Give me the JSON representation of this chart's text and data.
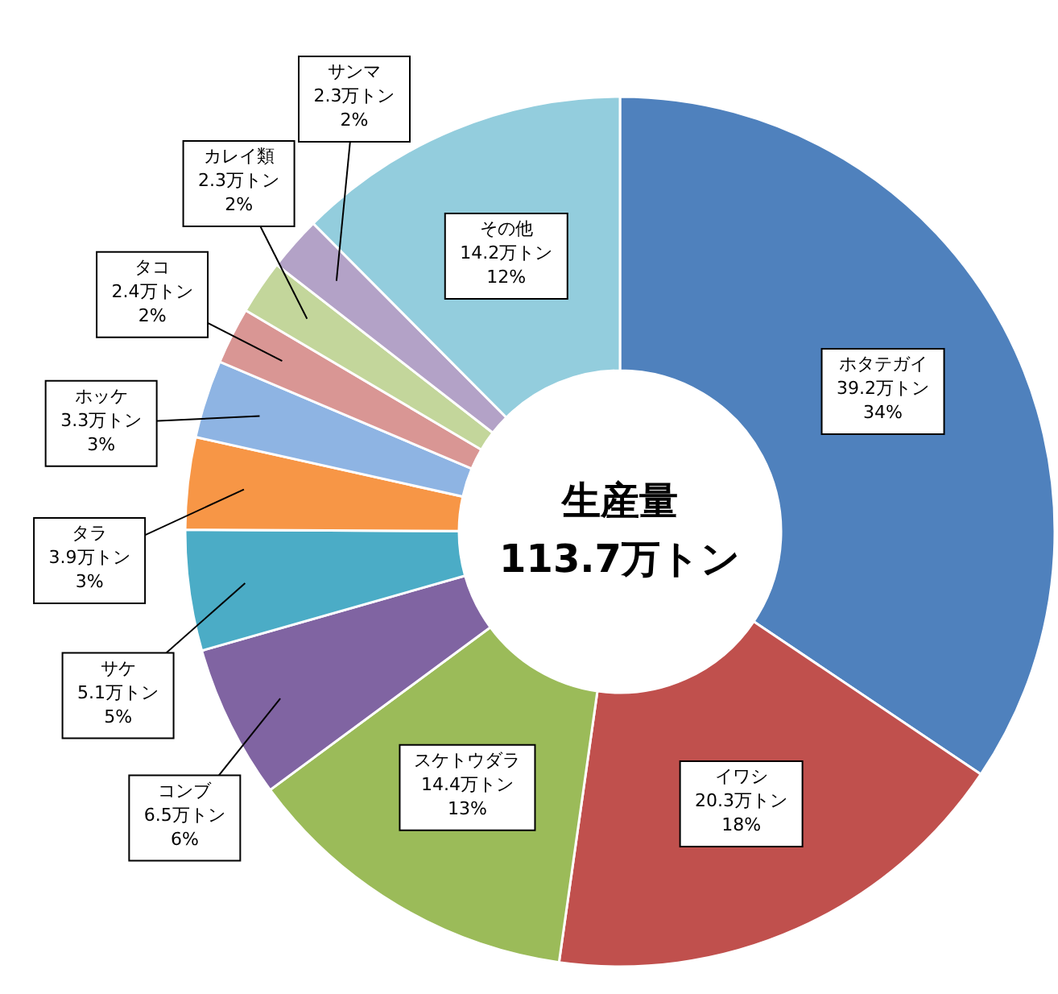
{
  "chart_data": {
    "type": "donut",
    "categories": [
      "ホタテガイ",
      "イワシ",
      "スケトウダラ",
      "コンブ",
      "サケ",
      "タラ",
      "ホッケ",
      "タコ",
      "カレイ類",
      "サンマ",
      "その他"
    ],
    "values": [
      39.2,
      20.3,
      14.4,
      6.5,
      5.1,
      3.9,
      3.3,
      2.4,
      2.3,
      2.3,
      14.2
    ],
    "value_labels": [
      "39.2万トン\n34%",
      "20.3万トン\n18%",
      "14.4万トン\n13%",
      "6.5万トン\n6%",
      "5.1万トン\n5%",
      "3.9万トン\n3%",
      "3.3万トン\n3%",
      "2.4万トン\n2%",
      "2.3万トン\n2%",
      "2.3万トン\n2%",
      "14.2万トン\n12%"
    ],
    "colors": [
      "#4f81bd",
      "#c0504d",
      "#9bbb59",
      "#8064a2",
      "#4bacc6",
      "#f79646",
      "#8eb4e3",
      "#d99694",
      "#c3d69b",
      "#b3a2c7",
      "#93cddd"
    ],
    "annotations": [
      "生産量",
      "113.7万トン"
    ]
  }
}
